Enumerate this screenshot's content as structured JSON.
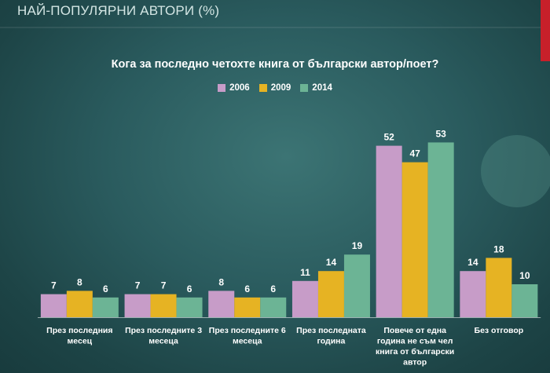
{
  "slide": {
    "title": "НАЙ-ПОПУЛЯРНИ АВТОРИ (%)"
  },
  "colors": {
    "s2006": "#c79cc8",
    "s2009": "#e6b323",
    "s2014": "#6cb495"
  },
  "chart_data": {
    "type": "bar",
    "title": "Кога за последно четохте книга от български автор/поет?",
    "legend_position": "top-center",
    "grid": false,
    "ylim": [
      0,
      55
    ],
    "categories": [
      [
        "През последния",
        "месец"
      ],
      [
        "През последните 3",
        "месеца"
      ],
      [
        "През последните 6",
        "месеца"
      ],
      [
        "През последната",
        "година"
      ],
      [
        "Повече от една",
        "година не съм чел",
        "книга от български",
        "автор"
      ],
      [
        "Без отговор"
      ]
    ],
    "series": [
      {
        "name": "2006",
        "values": [
          7,
          7,
          8,
          11,
          52,
          14
        ]
      },
      {
        "name": "2009",
        "values": [
          8,
          7,
          6,
          14,
          47,
          18
        ]
      },
      {
        "name": "2014",
        "values": [
          6,
          6,
          6,
          19,
          53,
          10
        ]
      }
    ]
  }
}
